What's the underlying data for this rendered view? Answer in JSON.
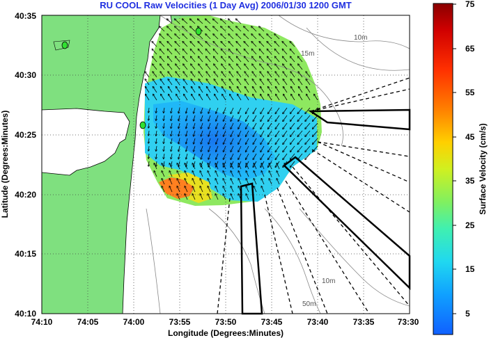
{
  "title": "RU COOL Raw Velocities (1 Day Avg) 2006/01/30 1200 GMT",
  "xlabel": "Longitude (Degrees:Minutes)",
  "ylabel": "Latitude (Degrees:Minutes)",
  "x_ticks": [
    "74:10",
    "74:05",
    "74:00",
    "73:55",
    "73:50",
    "73:45",
    "73:40",
    "73:35",
    "73:30"
  ],
  "y_ticks": [
    "40:35",
    "40:30",
    "40:25",
    "40:20",
    "40:15",
    "40:10"
  ],
  "contour_labels": [
    "10m",
    "15m",
    "10m",
    "50m"
  ],
  "colorbar": {
    "label": "Surface Velocity (cm/s)",
    "ticks": [
      "75",
      "65",
      "55",
      "45",
      "35",
      "25",
      "15",
      "5"
    ],
    "range": [
      0,
      75
    ]
  },
  "colors": {
    "land": "#7fe07f",
    "title": "#1f2fe0"
  }
}
